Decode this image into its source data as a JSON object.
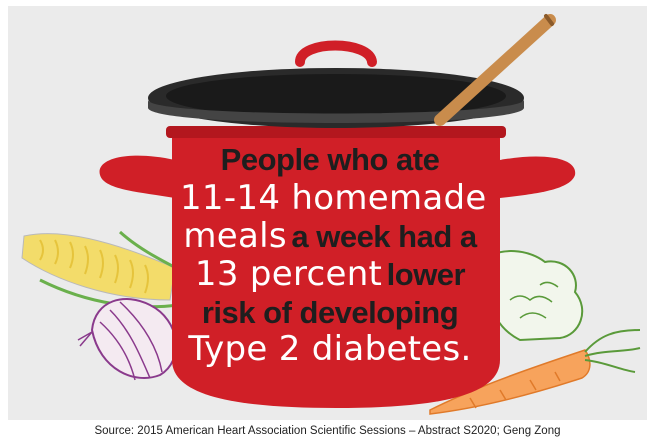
{
  "headline": {
    "line1_bold": "People who ate",
    "line2_hand": "11-14 homemade",
    "line3_hand": "meals",
    "line3_bold": "a week had a",
    "line4_hand": "13 percent",
    "line4_bold": "lower",
    "line5_bold": "risk of developing",
    "line6_hand": "Type 2 diabetes."
  },
  "source": "Source:  2015 American Heart Association Scientific Sessions – Abstract S2020; Geng Zong",
  "colors": {
    "background": "#ebebeb",
    "pot_red": "#d01f27",
    "pot_lid": "#2a2a2a",
    "spoon": "#c98c4c",
    "text_dark": "#1e1e1e",
    "text_light": "#ffffff"
  },
  "illustration": {
    "pot": "cooking-pot",
    "spoon": "wooden-spoon",
    "vegetables": [
      "corn",
      "onion",
      "broccoli",
      "carrot"
    ]
  }
}
